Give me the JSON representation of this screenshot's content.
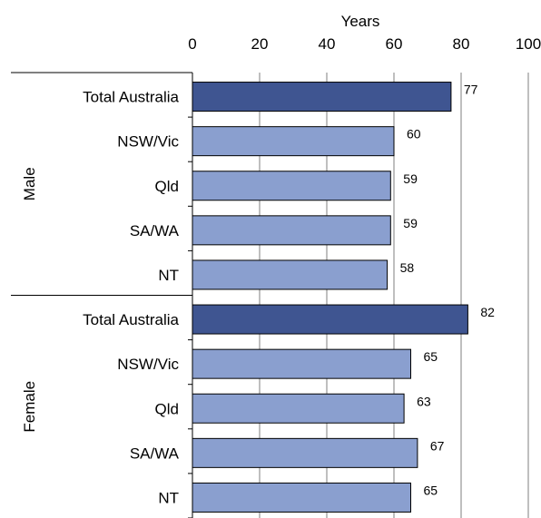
{
  "chart_data": {
    "type": "bar",
    "orientation": "horizontal",
    "axis_title": "Years",
    "xlim": [
      0,
      100
    ],
    "ticks": [
      0,
      20,
      40,
      60,
      80,
      100
    ],
    "grid": true,
    "groups": [
      {
        "label": "Male",
        "items": [
          {
            "category": "Total Australia",
            "value": 77,
            "highlight": true
          },
          {
            "category": "NSW/Vic",
            "value": 60,
            "highlight": false
          },
          {
            "category": "Qld",
            "value": 59,
            "highlight": false
          },
          {
            "category": "SA/WA",
            "value": 59,
            "highlight": false
          },
          {
            "category": "NT",
            "value": 58,
            "highlight": false
          }
        ]
      },
      {
        "label": "Female",
        "items": [
          {
            "category": "Total Australia",
            "value": 82,
            "highlight": true
          },
          {
            "category": "NSW/Vic",
            "value": 65,
            "highlight": false
          },
          {
            "category": "Qld",
            "value": 63,
            "highlight": false
          },
          {
            "category": "SA/WA",
            "value": 67,
            "highlight": false
          },
          {
            "category": "NT",
            "value": 65,
            "highlight": false
          }
        ]
      }
    ],
    "colors": {
      "highlight": "#3f5591",
      "normal": "#8a9fcf",
      "bar_stroke": "#000000",
      "grid": "#7f7f7f"
    }
  }
}
